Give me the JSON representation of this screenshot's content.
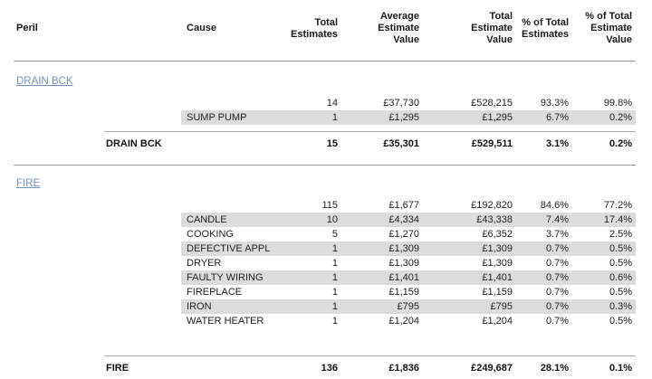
{
  "table": {
    "columns": {
      "peril": "Peril",
      "cause": "Cause",
      "total_estimates": "Total\nEstimates",
      "average_estimate_value": "Average\nEstimate\nValue",
      "total_estimate_value": "Total\nEstimate\nValue",
      "pct_of_total_estimates": "% of Total\nEstimates",
      "pct_of_total_estimate_value": "% of Total\nEstimate\nValue"
    },
    "sections": [
      {
        "peril": "DRAIN BCK",
        "rows": [
          {
            "cause": "",
            "shaded": false,
            "values": [
              "14",
              "£37,730",
              "£528,215",
              "93.3%",
              "99.8%"
            ]
          },
          {
            "cause": "SUMP PUMP",
            "shaded": true,
            "values": [
              "1",
              "£1,295",
              "£1,295",
              "6.7%",
              "0.2%"
            ]
          }
        ],
        "summary": {
          "label": "DRAIN BCK",
          "values": [
            "15",
            "£35,301",
            "£529,511",
            "3.1%",
            "0.2%"
          ]
        },
        "divider_after": true
      },
      {
        "peril": "FIRE",
        "rows": [
          {
            "cause": "",
            "shaded": false,
            "values": [
              "115",
              "£1,677",
              "£192,820",
              "84.6%",
              "77.2%"
            ]
          },
          {
            "cause": "CANDLE",
            "shaded": true,
            "values": [
              "10",
              "£4,334",
              "£43,338",
              "7.4%",
              "17.4%"
            ]
          },
          {
            "cause": "COOKING",
            "shaded": false,
            "values": [
              "5",
              "£1,270",
              "£6,352",
              "3.7%",
              "2.5%"
            ]
          },
          {
            "cause": "DEFECTIVE APPL",
            "shaded": true,
            "values": [
              "1",
              "£1,309",
              "£1,309",
              "0.7%",
              "0.5%"
            ]
          },
          {
            "cause": "DRYER",
            "shaded": false,
            "values": [
              "1",
              "£1,309",
              "£1,309",
              "0.7%",
              "0.5%"
            ]
          },
          {
            "cause": "FAULTY WIRING",
            "shaded": true,
            "values": [
              "1",
              "£1,401",
              "£1,401",
              "0.7%",
              "0.6%"
            ]
          },
          {
            "cause": "FIREPLACE",
            "shaded": false,
            "values": [
              "1",
              "£1,159",
              "£1,159",
              "0.7%",
              "0.5%"
            ]
          },
          {
            "cause": "IRON",
            "shaded": true,
            "values": [
              "1",
              "£795",
              "£795",
              "0.7%",
              "0.3%"
            ]
          },
          {
            "cause": "WATER HEATER",
            "shaded": false,
            "values": [
              "1",
              "£1,204",
              "£1,204",
              "0.7%",
              "0.5%"
            ]
          }
        ],
        "summary": {
          "label": "FIRE",
          "values": [
            "136",
            "£1,836",
            "£249,687",
            "28.1%",
            "0.1%"
          ]
        },
        "divider_after": false
      }
    ]
  },
  "colors": {
    "link": "#7292C4",
    "stripe": "#DCDCDC",
    "rule": "#999999",
    "summary_rule": "#ABABAB",
    "text": "#212121"
  }
}
